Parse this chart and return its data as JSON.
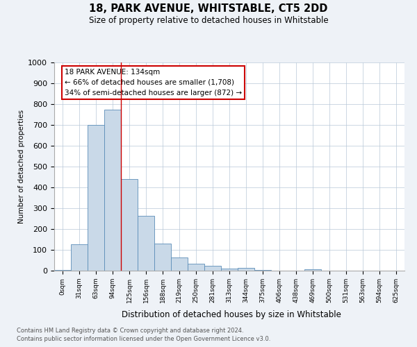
{
  "title1": "18, PARK AVENUE, WHITSTABLE, CT5 2DD",
  "title2": "Size of property relative to detached houses in Whitstable",
  "xlabel": "Distribution of detached houses by size in Whitstable",
  "ylabel": "Number of detached properties",
  "categories": [
    "0sqm",
    "31sqm",
    "63sqm",
    "94sqm",
    "125sqm",
    "156sqm",
    "188sqm",
    "219sqm",
    "250sqm",
    "281sqm",
    "313sqm",
    "344sqm",
    "375sqm",
    "406sqm",
    "438sqm",
    "469sqm",
    "500sqm",
    "531sqm",
    "563sqm",
    "594sqm",
    "625sqm"
  ],
  "values": [
    5,
    127,
    700,
    775,
    440,
    265,
    130,
    65,
    35,
    22,
    10,
    12,
    5,
    0,
    0,
    8,
    0,
    0,
    0,
    0,
    0
  ],
  "bar_color": "#c9d9e8",
  "bar_edge_color": "#5b8db8",
  "red_line_index": 4,
  "annotation_title": "18 PARK AVENUE: 134sqm",
  "annotation_line1": "← 66% of detached houses are smaller (1,708)",
  "annotation_line2": "34% of semi-detached houses are larger (872) →",
  "ylim": [
    0,
    1000
  ],
  "yticks": [
    0,
    100,
    200,
    300,
    400,
    500,
    600,
    700,
    800,
    900,
    1000
  ],
  "footnote1": "Contains HM Land Registry data © Crown copyright and database right 2024.",
  "footnote2": "Contains public sector information licensed under the Open Government Licence v3.0.",
  "bg_color": "#eef2f7",
  "plot_bg_color": "#ffffff"
}
